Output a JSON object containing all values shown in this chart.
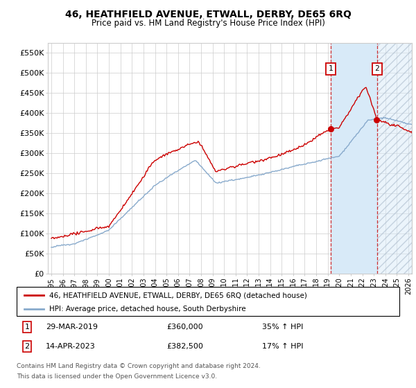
{
  "title": "46, HEATHFIELD AVENUE, ETWALL, DERBY, DE65 6RQ",
  "subtitle": "Price paid vs. HM Land Registry's House Price Index (HPI)",
  "ytick_labels": [
    "£0",
    "£50K",
    "£100K",
    "£150K",
    "£200K",
    "£250K",
    "£300K",
    "£350K",
    "£400K",
    "£450K",
    "£500K",
    "£550K"
  ],
  "ytick_values": [
    0,
    50000,
    100000,
    150000,
    200000,
    250000,
    300000,
    350000,
    400000,
    450000,
    500000,
    550000
  ],
  "xlim_start": 1994.7,
  "xlim_end": 2026.3,
  "ylim_min": 0,
  "ylim_max": 575000,
  "legend_line1": "46, HEATHFIELD AVENUE, ETWALL, DERBY, DE65 6RQ (detached house)",
  "legend_line2": "HPI: Average price, detached house, South Derbyshire",
  "marker1_date": "29-MAR-2019",
  "marker1_price": 360000,
  "marker1_hpi_label": "35% ↑ HPI",
  "marker1_year": 2019.25,
  "marker2_date": "14-APR-2023",
  "marker2_price": 382500,
  "marker2_hpi_label": "17% ↑ HPI",
  "marker2_year": 2023.29,
  "footnote_line1": "Contains HM Land Registry data © Crown copyright and database right 2024.",
  "footnote_line2": "This data is licensed under the Open Government Licence v3.0.",
  "line_color_red": "#cc0000",
  "line_color_blue": "#88aacc",
  "bg_color": "#ffffff",
  "grid_color": "#cccccc",
  "shade_color": "#d8eaf8",
  "xtick_start": 1995,
  "xtick_end": 2026
}
